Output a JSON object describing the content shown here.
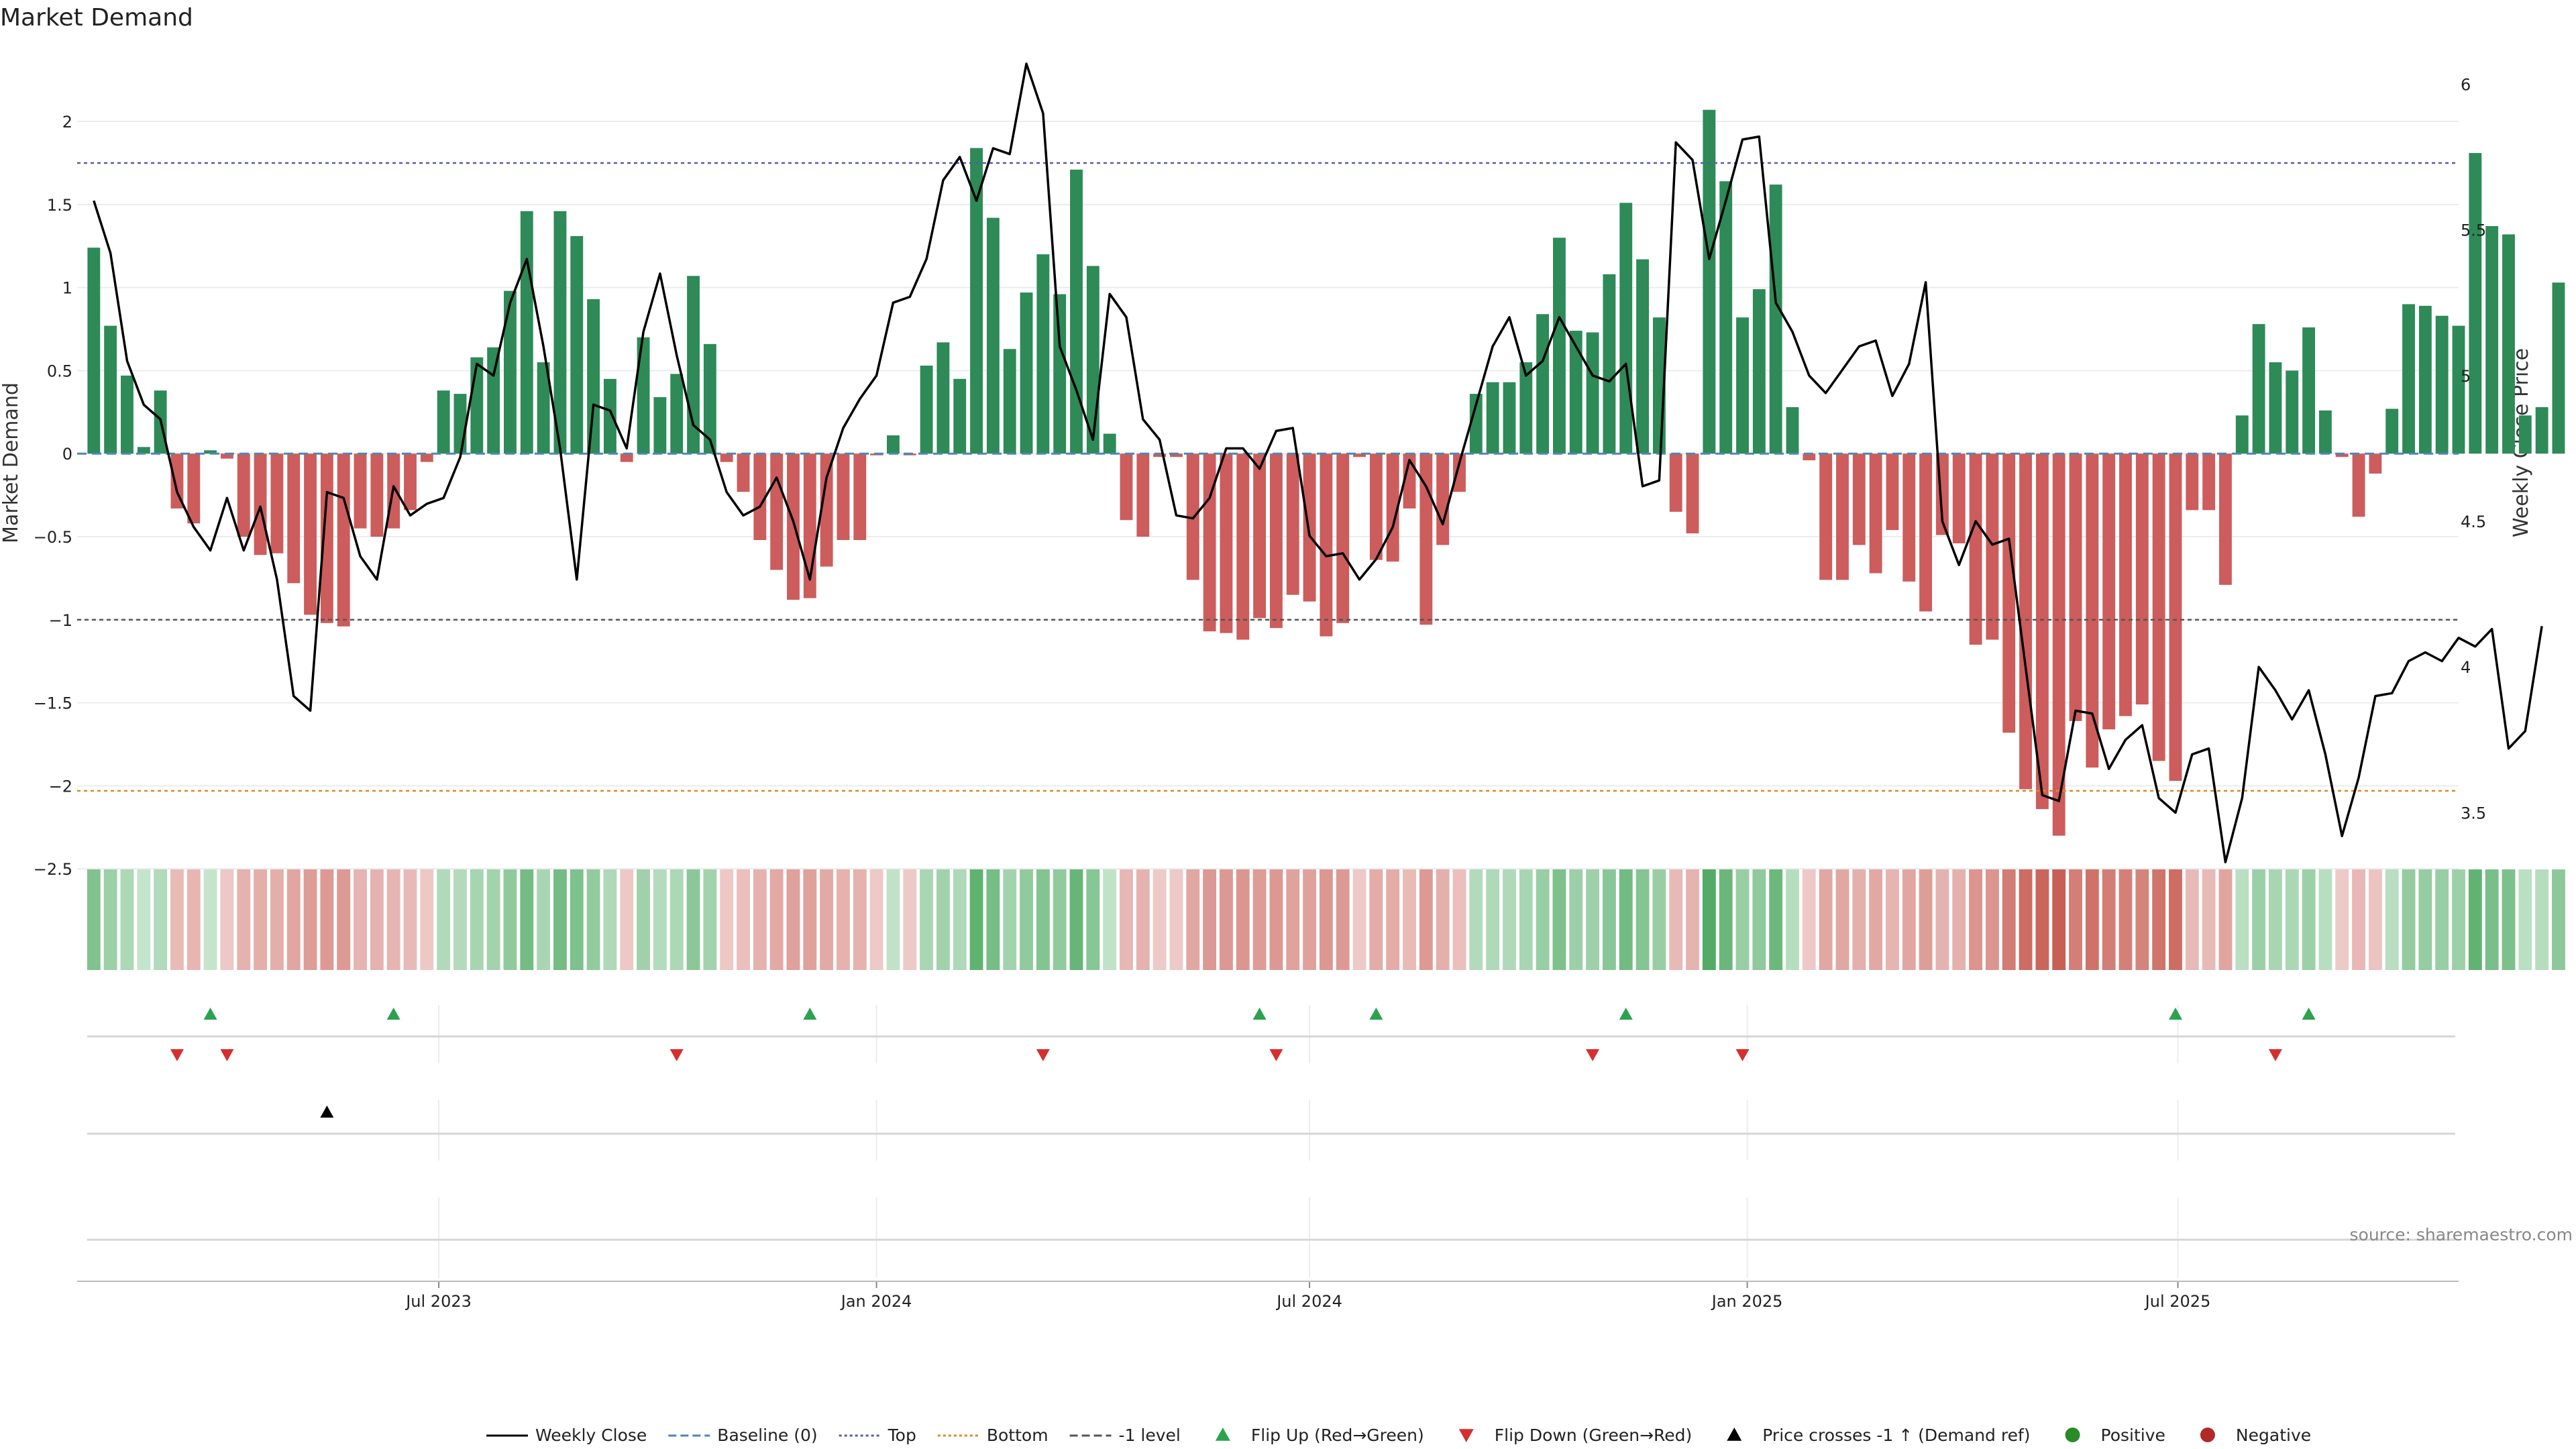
{
  "chart_data": {
    "type": "bar",
    "title": "Market Demand",
    "ylabel": "Market Demand",
    "y2label": "Weekly Close Price",
    "ylim": [
      -2.6,
      2.4
    ],
    "y2lim": [
      3.25,
      6.1
    ],
    "xlim": [
      "2023-01-30",
      "2025-10-27"
    ],
    "yticks": [
      "2",
      "1.5",
      "1",
      "0.5",
      "0",
      "−0.5",
      "−1",
      "−1.5",
      "−2",
      "−2.5"
    ],
    "y2ticks": [
      "6",
      "5.5",
      "5",
      "4.5",
      "4",
      "3.5"
    ],
    "xticks": [
      "Jul 2023",
      "Jan 2024",
      "Jul 2024",
      "Jan 2025",
      "Jul 2025"
    ],
    "reference_lines": {
      "baseline": 0,
      "top": 1.75,
      "bottom": -2.03,
      "minus_one": -1
    },
    "start_date": "2023-02-06",
    "week_step_days": 7,
    "demand": [
      1.24,
      0.77,
      0.47,
      0.04,
      0.38,
      -0.33,
      -0.42,
      0.02,
      -0.03,
      -0.5,
      -0.61,
      -0.6,
      -0.78,
      -0.97,
      -1.02,
      -1.04,
      -0.45,
      -0.5,
      -0.45,
      -0.34,
      -0.05,
      0.38,
      0.36,
      0.58,
      0.64,
      0.98,
      1.46,
      0.55,
      1.46,
      1.31,
      0.93,
      0.45,
      -0.05,
      0.7,
      0.34,
      0.48,
      1.07,
      0.66,
      -0.05,
      -0.23,
      -0.52,
      -0.7,
      -0.88,
      -0.87,
      -0.68,
      -0.52,
      -0.52,
      -0.01,
      0.11,
      -0.01,
      0.53,
      0.67,
      0.45,
      1.84,
      1.42,
      0.63,
      0.97,
      1.2,
      0.96,
      1.71,
      1.13,
      0.12,
      -0.4,
      -0.5,
      -0.02,
      -0.02,
      -0.76,
      -1.07,
      -1.08,
      -1.12,
      -0.99,
      -1.05,
      -0.85,
      -0.89,
      -1.1,
      -1.02,
      -0.02,
      -0.64,
      -0.65,
      -0.33,
      -1.03,
      -0.55,
      -0.23,
      0.36,
      0.43,
      0.43,
      0.55,
      0.84,
      1.3,
      0.74,
      0.73,
      1.08,
      1.51,
      1.17,
      0.82,
      -0.35,
      -0.48,
      2.07,
      1.64,
      0.82,
      0.99,
      1.62,
      0.28,
      -0.04,
      -0.76,
      -0.76,
      -0.55,
      -0.72,
      -0.46,
      -0.77,
      -0.95,
      -0.49,
      -0.54,
      -1.15,
      -1.12,
      -1.68,
      -2.02,
      -2.14,
      -2.3,
      -1.61,
      -1.89,
      -1.66,
      -1.58,
      -1.51,
      -1.85,
      -1.97,
      -0.34,
      -0.34,
      -0.79,
      0.23,
      0.78,
      0.55,
      0.5,
      0.76,
      0.26,
      -0.02,
      -0.38,
      -0.12,
      0.27,
      0.9,
      0.89,
      0.83,
      0.77,
      1.81,
      1.37,
      1.32,
      0.23,
      0.28,
      1.03
    ],
    "price": [
      5.6,
      5.42,
      5.05,
      4.9,
      4.85,
      4.6,
      4.48,
      4.4,
      4.58,
      4.4,
      4.55,
      4.3,
      3.9,
      3.85,
      4.6,
      4.58,
      4.38,
      4.3,
      4.62,
      4.52,
      4.56,
      4.58,
      4.72,
      5.04,
      5.0,
      5.25,
      5.4,
      5.1,
      4.75,
      4.3,
      4.9,
      4.88,
      4.75,
      5.15,
      5.35,
      5.07,
      4.83,
      4.78,
      4.6,
      4.52,
      4.55,
      4.65,
      4.5,
      4.3,
      4.65,
      4.82,
      4.92,
      5.0,
      5.25,
      5.27,
      5.4,
      5.67,
      5.75,
      5.6,
      5.78,
      5.76,
      6.07,
      5.9,
      5.1,
      4.95,
      4.78,
      5.28,
      5.2,
      4.85,
      4.78,
      4.52,
      4.51,
      4.58,
      4.75,
      4.75,
      4.68,
      4.81,
      4.82,
      4.45,
      4.38,
      4.39,
      4.3,
      4.37,
      4.48,
      4.71,
      4.62,
      4.49,
      4.7,
      4.9,
      5.1,
      5.2,
      5.0,
      5.05,
      5.2,
      5.1,
      5.0,
      4.98,
      5.04,
      4.62,
      4.64,
      5.8,
      5.74,
      5.4,
      5.6,
      5.81,
      5.82,
      5.25,
      5.15,
      5.0,
      4.94,
      5.02,
      5.1,
      5.12,
      4.93,
      5.04,
      5.32,
      4.5,
      4.35,
      4.5,
      4.42,
      4.44,
      4.0,
      3.56,
      3.54,
      3.85,
      3.84,
      3.65,
      3.75,
      3.8,
      3.55,
      3.5,
      3.7,
      3.72,
      3.33,
      3.55,
      4.0,
      3.92,
      3.82,
      3.92,
      3.7,
      3.42,
      3.62,
      3.9,
      3.91,
      4.02,
      4.05,
      4.02,
      4.1,
      4.07,
      4.13,
      3.72,
      3.78,
      4.14
    ],
    "flip_up_weeks": [
      7,
      18,
      43,
      70,
      77,
      92,
      125,
      133
    ],
    "flip_down_weeks": [
      5,
      8,
      35,
      57,
      71,
      90,
      99,
      131
    ],
    "price_cross_weeks": [
      14
    ],
    "legend": [
      {
        "label": "Weekly Close",
        "marker": "line-solid",
        "color": "#000000"
      },
      {
        "label": "Baseline (0)",
        "marker": "line-dash",
        "color": "#4c86b8"
      },
      {
        "label": "Top",
        "marker": "line-dot",
        "color": "#5a5aa8"
      },
      {
        "label": "Bottom",
        "marker": "line-dot",
        "color": "#e08a1e"
      },
      {
        "label": "-1 level",
        "marker": "line-dash",
        "color": "#555555"
      },
      {
        "label": "Flip Up (Red→Green)",
        "marker": "triangle-up",
        "color": "#2ca24f"
      },
      {
        "label": "Flip Down (Green→Red)",
        "marker": "triangle-down",
        "color": "#d62f2f"
      },
      {
        "label": "Price crosses -1 ↑ (Demand ref)",
        "marker": "triangle-up",
        "color": "#000000"
      },
      {
        "label": "Positive",
        "marker": "circle",
        "color": "#2a8a2a"
      },
      {
        "label": "Negative",
        "marker": "circle",
        "color": "#b02a2a"
      }
    ],
    "colors": {
      "positive_bar": "#2e8a57",
      "negative_bar": "#cd5c5c",
      "price_line": "#000000"
    }
  },
  "source": "source: sharemaestro.com"
}
